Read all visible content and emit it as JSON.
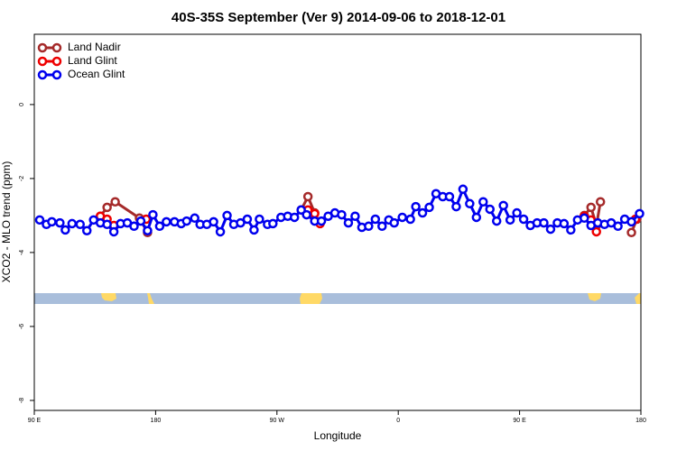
{
  "chart_data": {
    "type": "line",
    "title": "40S-35S September (Ver 9)   2014-09-06 to 2018-12-01",
    "xlabel": "Longitude",
    "ylabel": "XCO2 - MLO trend (ppm)",
    "xlim": [
      90,
      540
    ],
    "ylim": [
      -8.27,
      1.9
    ],
    "xticks": [
      {
        "value": 90,
        "label": "90 E"
      },
      180,
      {
        "value": 270,
        "label": "90 W"
      },
      {
        "value": 360,
        "label": "0"
      },
      {
        "value": 450,
        "label": "90 E"
      },
      {
        "value": 540,
        "label": "180"
      }
    ],
    "yticks": [
      -8,
      -6,
      -4,
      -2,
      0
    ],
    "legend": "top-left",
    "series": [
      {
        "name": "Land Nadir",
        "color": "#a52a2a",
        "x": [
          139,
          144,
          150,
          168,
          174,
          288,
          293,
          298,
          498,
          503,
          507,
          510,
          533,
          537
        ],
        "values": [
          -3.02,
          -2.78,
          -2.63,
          -3.07,
          -3.46,
          -2.85,
          -2.49,
          -2.93,
          -3.0,
          -2.78,
          -3.27,
          -2.63,
          -3.46,
          -3.1
        ]
      },
      {
        "name": "Land Glint",
        "color": "#ee0000",
        "x": [
          139,
          144,
          149,
          173,
          293,
          298,
          302,
          498,
          503,
          507,
          536
        ],
        "values": [
          -3.02,
          -3.1,
          -3.27,
          -3.1,
          -2.85,
          -2.95,
          -3.22,
          -3.02,
          -3.12,
          -3.44,
          -3.1
        ]
      },
      {
        "name": "Ocean Glint",
        "color": "#0000ee",
        "x": [
          94,
          99,
          103,
          109,
          113,
          118,
          124,
          129,
          134,
          139,
          144,
          149,
          154,
          159,
          164,
          169,
          174,
          178,
          183,
          188,
          194,
          199,
          203,
          209,
          213,
          218,
          223,
          228,
          233,
          238,
          243,
          248,
          253,
          257,
          263,
          267,
          273,
          278,
          283,
          288,
          292,
          298,
          303,
          308,
          313,
          318,
          323,
          328,
          333,
          338,
          343,
          348,
          353,
          357,
          363,
          369,
          373,
          378,
          383,
          388,
          393,
          398,
          403,
          408,
          413,
          418,
          423,
          428,
          433,
          438,
          443,
          448,
          453,
          458,
          463,
          468,
          473,
          478,
          483,
          488,
          493,
          498,
          503,
          508,
          513,
          518,
          523,
          528,
          533,
          539
        ],
        "values": [
          -3.12,
          -3.24,
          -3.17,
          -3.2,
          -3.39,
          -3.22,
          -3.24,
          -3.41,
          -3.12,
          -3.2,
          -3.24,
          -3.44,
          -3.22,
          -3.2,
          -3.29,
          -3.15,
          -3.41,
          -2.98,
          -3.29,
          -3.17,
          -3.17,
          -3.22,
          -3.15,
          -3.07,
          -3.24,
          -3.24,
          -3.17,
          -3.44,
          -3.0,
          -3.24,
          -3.2,
          -3.1,
          -3.39,
          -3.1,
          -3.24,
          -3.22,
          -3.05,
          -3.02,
          -3.05,
          -2.85,
          -2.98,
          -3.15,
          -3.15,
          -3.02,
          -2.93,
          -2.98,
          -3.2,
          -3.02,
          -3.32,
          -3.29,
          -3.1,
          -3.29,
          -3.12,
          -3.2,
          -3.05,
          -3.1,
          -2.76,
          -2.93,
          -2.78,
          -2.41,
          -2.49,
          -2.49,
          -2.76,
          -2.29,
          -2.68,
          -3.05,
          -2.63,
          -2.83,
          -3.15,
          -2.73,
          -3.12,
          -2.93,
          -3.1,
          -3.27,
          -3.2,
          -3.2,
          -3.37,
          -3.2,
          -3.22,
          -3.39,
          -3.12,
          -3.07,
          -3.27,
          -3.2,
          -3.24,
          -3.2,
          -3.29,
          -3.1,
          -3.17,
          -2.95
        ]
      }
    ]
  }
}
